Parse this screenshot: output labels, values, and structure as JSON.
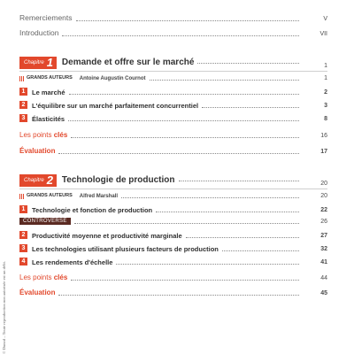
{
  "front": [
    {
      "label": "Remerciements",
      "page": "V"
    },
    {
      "label": "Introduction",
      "page": "VII"
    }
  ],
  "chapters": [
    {
      "chip_word": "Chapitre",
      "number": "1",
      "title": "Demande et offre sur le marché",
      "page": "1",
      "authors": {
        "tag": "GRANDS AUTEURS",
        "name": "Antoine Augustin Cournot",
        "page": "1"
      },
      "sections": [
        {
          "n": "1",
          "label": "Le marché",
          "page": "2"
        },
        {
          "n": "2",
          "label": "L'équilibre sur un marché parfaitement concurrentiel",
          "page": "3"
        },
        {
          "n": "3",
          "label": "Élasticités",
          "page": "8"
        }
      ],
      "points": {
        "prefix": "Les points",
        "strong": "clés",
        "page": "16"
      },
      "evaluation": {
        "label": "Évaluation",
        "page": "17"
      }
    },
    {
      "chip_word": "Chapitre",
      "number": "2",
      "title": "Technologie de production",
      "page": "20",
      "authors": {
        "tag": "GRANDS AUTEURS",
        "name": "Alfred Marshall",
        "page": "20"
      },
      "sections_a": [
        {
          "n": "1",
          "label": "Technologie et fonction de production",
          "page": "22"
        }
      ],
      "controverse": {
        "label": "CONTROVERSE",
        "page": "26"
      },
      "sections_b": [
        {
          "n": "2",
          "label": "Productivité moyenne et productivité marginale",
          "page": "27"
        },
        {
          "n": "3",
          "label": "Les technologies utilisant plusieurs facteurs de production",
          "page": "32"
        },
        {
          "n": "4",
          "label": "Les rendements d'échelle",
          "page": "41"
        }
      ],
      "points": {
        "prefix": "Les points",
        "strong": "clés",
        "page": "44"
      },
      "evaluation": {
        "label": "Évaluation",
        "page": "45"
      }
    }
  ],
  "side_note": "© Dunod – Toute reproduction non autorisée est un délit."
}
